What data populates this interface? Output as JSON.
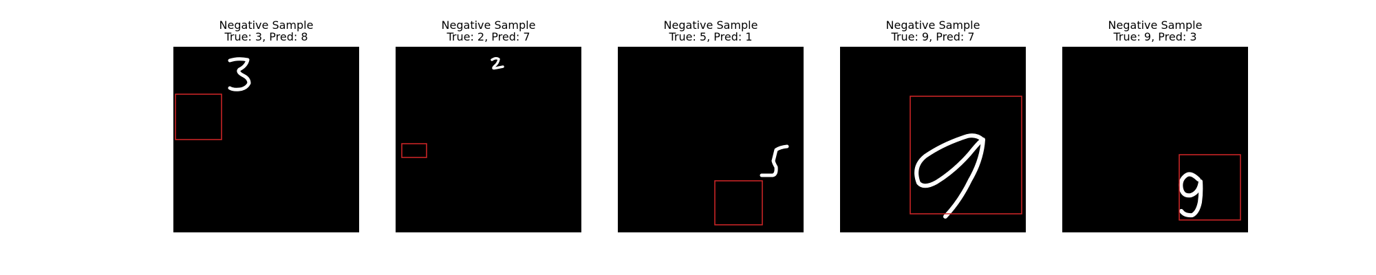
{
  "figure": {
    "panels": [
      {
        "title": "Negative Sample",
        "subtitle": "True: 3, Pred: 8",
        "digit_glyph": "3",
        "box_color": "#d62728"
      },
      {
        "title": "Negative Sample",
        "subtitle": "True: 2, Pred: 7",
        "digit_glyph": "2",
        "box_color": "#d62728"
      },
      {
        "title": "Negative Sample",
        "subtitle": "True: 5, Pred: 1",
        "digit_glyph": "5",
        "box_color": "#d62728"
      },
      {
        "title": "Negative Sample",
        "subtitle": "True: 9, Pred: 7",
        "digit_glyph": "9",
        "box_color": "#d62728"
      },
      {
        "title": "Negative Sample",
        "subtitle": "True: 9, Pred: 3",
        "digit_glyph": "9",
        "box_color": "#d62728"
      }
    ]
  }
}
